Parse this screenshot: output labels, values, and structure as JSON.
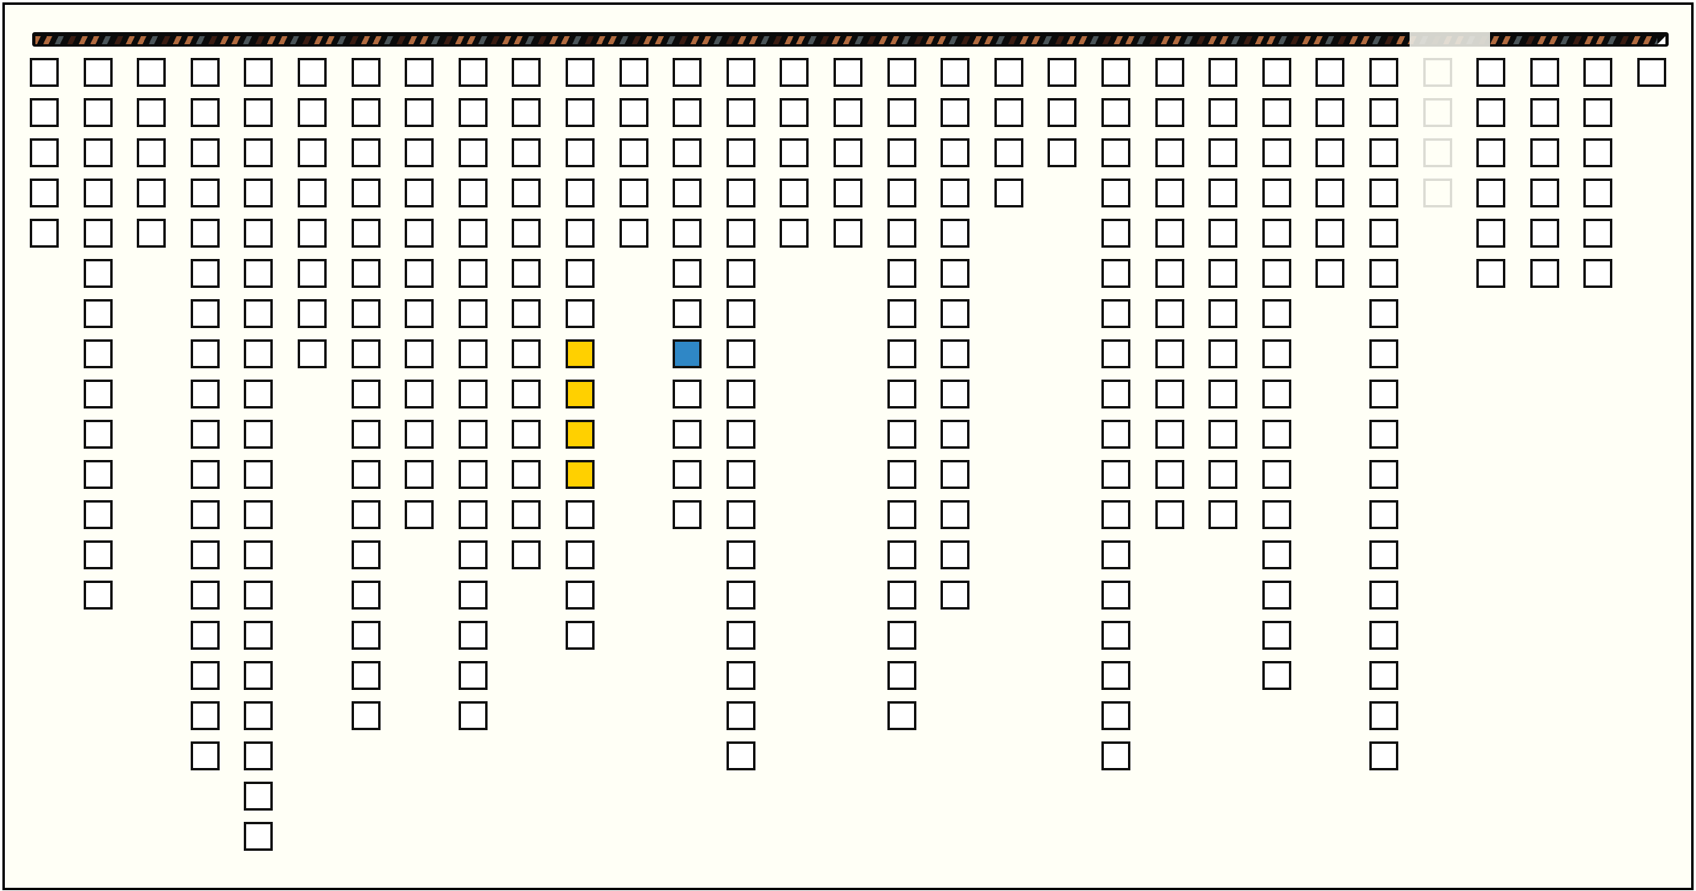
{
  "colors": {
    "background": "#fffff6",
    "square_border": "#111111",
    "square_fill": "#ffffff",
    "highlight_yellow": "#ffd000",
    "highlight_blue": "#2f87c6",
    "faded_border": "#dcdcd4"
  },
  "bar": {
    "faded_column": 26
  },
  "columns": [
    {
      "count": 5
    },
    {
      "count": 14
    },
    {
      "count": 5
    },
    {
      "count": 18
    },
    {
      "count": 20
    },
    {
      "count": 8
    },
    {
      "count": 17
    },
    {
      "count": 12
    },
    {
      "count": 17
    },
    {
      "count": 13
    },
    {
      "count": 15,
      "highlights": {
        "7": "yellow",
        "8": "yellow",
        "9": "yellow",
        "10": "yellow"
      }
    },
    {
      "count": 5
    },
    {
      "count": 12,
      "highlights": {
        "7": "blue"
      }
    },
    {
      "count": 18
    },
    {
      "count": 5
    },
    {
      "count": 5
    },
    {
      "count": 17
    },
    {
      "count": 14
    },
    {
      "count": 4
    },
    {
      "count": 3
    },
    {
      "count": 18
    },
    {
      "count": 12
    },
    {
      "count": 12
    },
    {
      "count": 16
    },
    {
      "count": 6
    },
    {
      "count": 18
    },
    {
      "count": 4,
      "faded": true
    },
    {
      "count": 6
    },
    {
      "count": 6
    },
    {
      "count": 6
    },
    {
      "count": 1
    }
  ]
}
